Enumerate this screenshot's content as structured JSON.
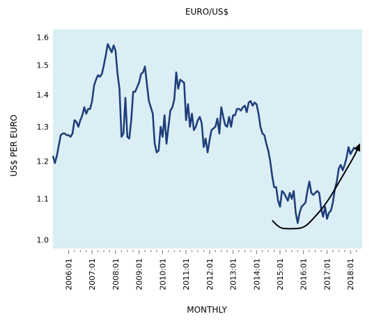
{
  "chart_data": {
    "type": "line",
    "title": "EURO/US$",
    "xlabel": "MONTHLY",
    "ylabel": "US$ PER EURO",
    "y_scale": "log",
    "ylim": [
      0.98,
      1.63
    ],
    "xlim": [
      "2005-05",
      "2018-07"
    ],
    "y_ticks": [
      1.0,
      1.1,
      1.2,
      1.3,
      1.4,
      1.5,
      1.6
    ],
    "y_tick_labels": [
      "1.0",
      "1.1",
      "1.2",
      "1.3",
      "1.4",
      "1.5",
      "1.6"
    ],
    "x_ticks": [
      "2006-01",
      "2007-01",
      "2008-01",
      "2009-01",
      "2010-01",
      "2011-01",
      "2012-01",
      "2013-01",
      "2014-01",
      "2015-01",
      "2016-01",
      "2017-01",
      "2018-01"
    ],
    "x_tick_labels": [
      "2006:01",
      "2007:01",
      "2008:01",
      "2009:01",
      "2010:01",
      "2011:01",
      "2012:01",
      "2013:01",
      "2014:01",
      "2015:01",
      "2016:01",
      "2017:01",
      "2018:01"
    ],
    "grid": false,
    "background_color": "#dceef5",
    "series_color": "#1f3f7a",
    "series": [
      {
        "x": [
          "2005-05",
          "2005-06",
          "2005-07",
          "2005-08",
          "2005-09",
          "2005-10",
          "2005-11",
          "2005-12",
          "2006-01",
          "2006-02",
          "2006-03",
          "2006-04",
          "2006-05",
          "2006-06",
          "2006-07",
          "2006-08",
          "2006-09",
          "2006-10",
          "2006-11",
          "2006-12",
          "2007-01",
          "2007-02",
          "2007-03",
          "2007-04",
          "2007-05",
          "2007-06",
          "2007-07",
          "2007-08",
          "2007-09",
          "2007-10",
          "2007-11",
          "2007-12",
          "2008-01",
          "2008-02",
          "2008-03",
          "2008-04",
          "2008-05",
          "2008-06",
          "2008-07",
          "2008-08",
          "2008-09",
          "2008-10",
          "2008-11",
          "2008-12",
          "2009-01",
          "2009-02",
          "2009-03",
          "2009-04",
          "2009-05",
          "2009-06",
          "2009-07",
          "2009-08",
          "2009-09",
          "2009-10",
          "2009-11",
          "2009-12",
          "2010-01",
          "2010-02",
          "2010-03",
          "2010-04",
          "2010-05",
          "2010-06",
          "2010-07",
          "2010-08",
          "2010-09",
          "2010-10",
          "2010-11",
          "2010-12",
          "2011-01",
          "2011-02",
          "2011-03",
          "2011-04",
          "2011-05",
          "2011-06",
          "2011-07",
          "2011-08",
          "2011-09",
          "2011-10",
          "2011-11",
          "2011-12",
          "2012-01",
          "2012-02",
          "2012-03",
          "2012-04",
          "2012-05",
          "2012-06",
          "2012-07",
          "2012-08",
          "2012-09",
          "2012-10",
          "2012-11",
          "2012-12",
          "2013-01",
          "2013-02",
          "2013-03",
          "2013-04",
          "2013-05",
          "2013-06",
          "2013-07",
          "2013-08",
          "2013-09",
          "2013-10",
          "2013-11",
          "2013-12",
          "2014-01",
          "2014-02",
          "2014-03",
          "2014-04",
          "2014-05",
          "2014-06",
          "2014-07",
          "2014-08",
          "2014-09",
          "2014-10",
          "2014-11",
          "2014-12",
          "2015-01",
          "2015-02",
          "2015-03",
          "2015-04",
          "2015-05",
          "2015-06",
          "2015-07",
          "2015-08",
          "2015-09",
          "2015-10",
          "2015-11",
          "2015-12",
          "2016-01",
          "2016-02",
          "2016-03",
          "2016-04",
          "2016-05",
          "2016-06",
          "2016-07",
          "2016-08",
          "2016-09",
          "2016-10",
          "2016-11",
          "2016-12",
          "2017-01",
          "2017-02",
          "2017-03",
          "2017-04",
          "2017-05",
          "2017-06",
          "2017-07",
          "2017-08",
          "2017-09",
          "2017-10",
          "2017-11",
          "2017-12",
          "2018-01",
          "2018-02",
          "2018-03"
        ],
        "values": [
          1.215,
          1.195,
          1.215,
          1.245,
          1.275,
          1.28,
          1.28,
          1.275,
          1.275,
          1.27,
          1.28,
          1.32,
          1.315,
          1.3,
          1.32,
          1.335,
          1.36,
          1.34,
          1.355,
          1.355,
          1.38,
          1.43,
          1.45,
          1.465,
          1.46,
          1.47,
          1.5,
          1.535,
          1.575,
          1.56,
          1.545,
          1.57,
          1.55,
          1.47,
          1.42,
          1.27,
          1.28,
          1.39,
          1.27,
          1.265,
          1.32,
          1.41,
          1.41,
          1.425,
          1.44,
          1.47,
          1.475,
          1.495,
          1.435,
          1.38,
          1.36,
          1.34,
          1.25,
          1.225,
          1.23,
          1.3,
          1.27,
          1.335,
          1.25,
          1.3,
          1.35,
          1.36,
          1.385,
          1.475,
          1.42,
          1.45,
          1.445,
          1.44,
          1.32,
          1.37,
          1.3,
          1.34,
          1.29,
          1.3,
          1.32,
          1.33,
          1.31,
          1.24,
          1.265,
          1.225,
          1.26,
          1.29,
          1.295,
          1.3,
          1.325,
          1.28,
          1.36,
          1.33,
          1.305,
          1.3,
          1.33,
          1.3,
          1.335,
          1.335,
          1.355,
          1.355,
          1.35,
          1.36,
          1.365,
          1.345,
          1.375,
          1.38,
          1.365,
          1.375,
          1.37,
          1.34,
          1.3,
          1.28,
          1.275,
          1.25,
          1.23,
          1.2,
          1.16,
          1.13,
          1.13,
          1.095,
          1.08,
          1.12,
          1.115,
          1.105,
          1.095,
          1.115,
          1.1,
          1.12,
          1.065,
          1.04,
          1.065,
          1.08,
          1.085,
          1.09,
          1.12,
          1.145,
          1.115,
          1.11,
          1.115,
          1.12,
          1.115,
          1.075,
          1.055,
          1.08,
          1.05,
          1.065,
          1.07,
          1.09,
          1.125,
          1.145,
          1.18,
          1.19,
          1.175,
          1.19,
          1.21,
          1.24,
          1.22,
          1.23,
          1.24
        ]
      }
    ],
    "annotations": [
      {
        "type": "arrow",
        "points": [
          [
            "2014-09",
            1.046
          ],
          [
            "2015-01",
            1.027
          ],
          [
            "2015-06",
            1.026
          ],
          [
            "2016-01",
            1.027
          ],
          [
            "2016-06",
            1.05
          ],
          [
            "2017-01",
            1.09
          ],
          [
            "2017-09",
            1.16
          ],
          [
            "2018-03",
            1.215
          ],
          [
            "2018-05",
            1.24
          ]
        ]
      }
    ]
  }
}
